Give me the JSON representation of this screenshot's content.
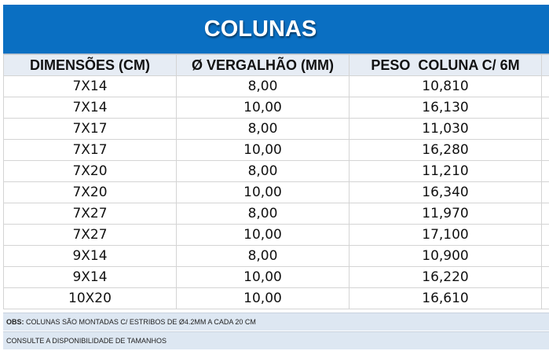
{
  "header": {
    "title": "COLUNAS"
  },
  "table": {
    "columns": [
      "DIMENSÕES (CM)",
      "Ø VERGALHÃO (MM)",
      "PESO  COLUNA C/ 6M"
    ],
    "rows": [
      [
        "7X14",
        "8,00",
        "10,810"
      ],
      [
        "7X14",
        "10,00",
        "16,130"
      ],
      [
        "7X17",
        "8,00",
        "11,030"
      ],
      [
        "7X17",
        "10,00",
        "16,280"
      ],
      [
        "7X20",
        "8,00",
        "11,210"
      ],
      [
        "7X20",
        "10,00",
        "16,340"
      ],
      [
        "7X27",
        "8,00",
        "11,970"
      ],
      [
        "7X27",
        "10,00",
        "17,100"
      ],
      [
        "9X14",
        "8,00",
        "10,900"
      ],
      [
        "9X14",
        "10,00",
        "16,220"
      ],
      [
        "10X20",
        "10,00",
        "16,610"
      ]
    ]
  },
  "notes": [
    {
      "label": "OBS:",
      "text": "COLUNAS SÃO MONTADAS C/ ESTRIBOS DE Ø4.2MM A CADA 20 CM"
    },
    {
      "text": "CONSULTE A DISPONIBILIDADE DE TAMANHOS"
    }
  ]
}
